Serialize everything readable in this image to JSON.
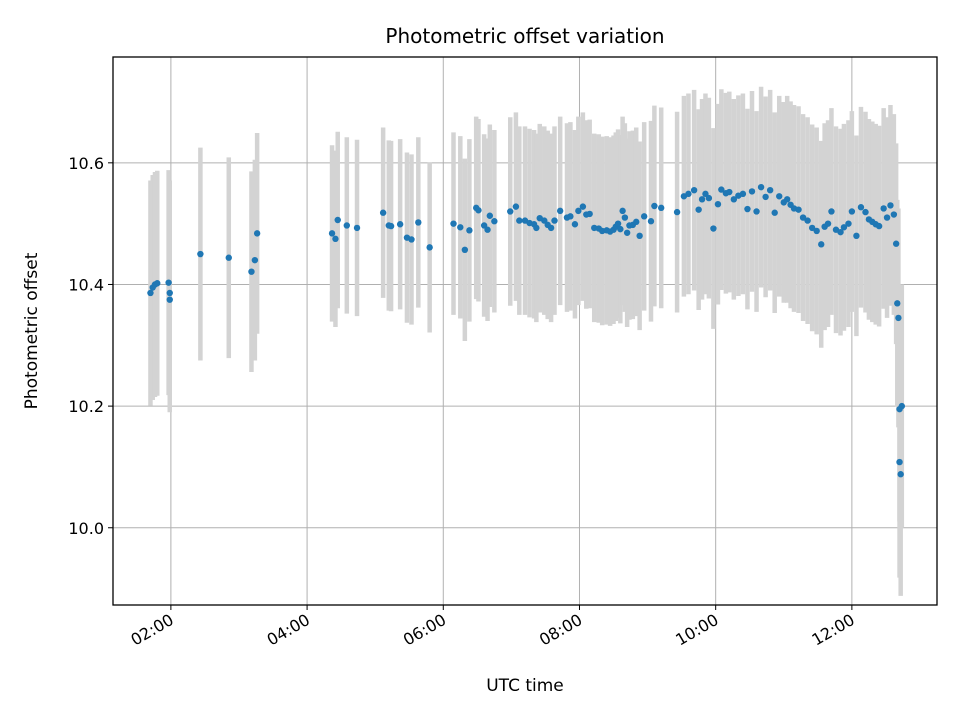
{
  "chart_data": {
    "type": "scatter",
    "title": "Photometric offset variation",
    "xlabel": "UTC time",
    "ylabel": "Photometric offset",
    "x_axis_type": "time",
    "xlim": [
      "01:09",
      "13:15"
    ],
    "ylim": [
      9.873,
      10.774
    ],
    "xticks": [
      "02:00",
      "04:00",
      "06:00",
      "08:00",
      "10:00",
      "12:00"
    ],
    "yticks": [
      "10.0",
      "10.2",
      "10.4",
      "10.6"
    ],
    "grid": true,
    "legend": "none",
    "colors": {
      "points": "#1f77b4",
      "errorbars": "#d3d3d3",
      "grid": "#b0b0b0"
    },
    "series": [
      {
        "x": [
          "01:42",
          "01:44",
          "01:46",
          "01:48",
          "01:58",
          "01:59",
          "01:59",
          "02:26",
          "02:51",
          "03:11",
          "03:14",
          "03:16",
          "04:22",
          "04:25",
          "04:27",
          "04:35",
          "04:44",
          "05:07",
          "05:12",
          "05:14",
          "05:22",
          "05:28",
          "05:32",
          "05:38",
          "05:48",
          "06:09",
          "06:15",
          "06:19",
          "06:23",
          "06:29",
          "06:31",
          "06:36",
          "06:39",
          "06:41",
          "06:45",
          "06:59",
          "07:04",
          "07:07",
          "07:12",
          "07:16",
          "07:20",
          "07:22",
          "07:25",
          "07:29",
          "07:32",
          "07:35",
          "07:38",
          "07:43",
          "07:49",
          "07:52",
          "07:56",
          "07:59",
          "08:03",
          "08:06",
          "08:09",
          "08:13",
          "08:17",
          "08:20",
          "08:24",
          "08:27",
          "08:30",
          "08:32",
          "08:34",
          "08:36",
          "08:38",
          "08:40",
          "08:42",
          "08:44",
          "08:47",
          "08:50",
          "08:53",
          "08:57",
          "09:03",
          "09:06",
          "09:12",
          "09:26",
          "09:32",
          "09:36",
          "09:41",
          "09:45",
          "09:48",
          "09:51",
          "09:54",
          "09:58",
          "10:02",
          "10:05",
          "10:09",
          "10:12",
          "10:16",
          "10:20",
          "10:24",
          "10:28",
          "10:32",
          "10:36",
          "10:40",
          "10:44",
          "10:48",
          "10:52",
          "10:56",
          "11:00",
          "11:03",
          "11:06",
          "11:09",
          "11:13",
          "11:17",
          "11:21",
          "11:25",
          "11:29",
          "11:33",
          "11:36",
          "11:39",
          "11:42",
          "11:46",
          "11:50",
          "11:53",
          "11:57",
          "12:00",
          "12:04",
          "12:08",
          "12:12",
          "12:15",
          "12:18",
          "12:21",
          "12:24",
          "12:28",
          "12:31",
          "12:34",
          "12:37",
          "12:39",
          "12:40",
          "12:41",
          "12:42",
          "12:42",
          "12:43",
          "12:44"
        ],
        "y": [
          10.386,
          10.395,
          10.4,
          10.402,
          10.403,
          10.386,
          10.375,
          10.45,
          10.444,
          10.421,
          10.44,
          10.484,
          10.484,
          10.475,
          10.506,
          10.497,
          10.493,
          10.518,
          10.497,
          10.496,
          10.499,
          10.477,
          10.474,
          10.502,
          10.461,
          10.5,
          10.494,
          10.457,
          10.489,
          10.526,
          10.522,
          10.497,
          10.49,
          10.513,
          10.504,
          10.52,
          10.528,
          10.505,
          10.505,
          10.501,
          10.499,
          10.493,
          10.509,
          10.505,
          10.498,
          10.493,
          10.505,
          10.521,
          10.51,
          10.512,
          10.499,
          10.521,
          10.528,
          10.515,
          10.516,
          10.493,
          10.492,
          10.488,
          10.489,
          10.487,
          10.49,
          10.495,
          10.5,
          10.491,
          10.521,
          10.51,
          10.485,
          10.497,
          10.498,
          10.503,
          10.48,
          10.512,
          10.504,
          10.529,
          10.526,
          10.519,
          10.545,
          10.549,
          10.555,
          10.523,
          10.54,
          10.549,
          10.542,
          10.492,
          10.532,
          10.556,
          10.55,
          10.552,
          10.54,
          10.546,
          10.549,
          10.524,
          10.553,
          10.52,
          10.56,
          10.544,
          10.555,
          10.518,
          10.545,
          10.535,
          10.54,
          10.531,
          10.525,
          10.523,
          10.51,
          10.505,
          10.493,
          10.488,
          10.466,
          10.495,
          10.5,
          10.52,
          10.49,
          10.486,
          10.494,
          10.5,
          10.52,
          10.48,
          10.527,
          10.519,
          10.507,
          10.503,
          10.499,
          10.496,
          10.525,
          10.51,
          10.53,
          10.515,
          10.467,
          10.369,
          10.345,
          10.195,
          10.108,
          10.088,
          10.2
        ],
        "yerr": [
          0.185,
          0.185,
          0.185,
          0.185,
          0.185,
          0.185,
          0.185,
          0.175,
          0.165,
          0.165,
          0.165,
          0.165,
          0.145,
          0.145,
          0.145,
          0.145,
          0.145,
          0.14,
          0.14,
          0.14,
          0.14,
          0.14,
          0.14,
          0.14,
          0.14,
          0.15,
          0.15,
          0.15,
          0.15,
          0.15,
          0.15,
          0.15,
          0.15,
          0.15,
          0.15,
          0.155,
          0.155,
          0.155,
          0.155,
          0.155,
          0.155,
          0.155,
          0.155,
          0.155,
          0.155,
          0.155,
          0.155,
          0.155,
          0.155,
          0.155,
          0.155,
          0.155,
          0.155,
          0.155,
          0.155,
          0.155,
          0.155,
          0.155,
          0.155,
          0.155,
          0.155,
          0.155,
          0.155,
          0.155,
          0.155,
          0.155,
          0.155,
          0.155,
          0.155,
          0.155,
          0.155,
          0.155,
          0.165,
          0.165,
          0.165,
          0.165,
          0.165,
          0.165,
          0.165,
          0.165,
          0.165,
          0.165,
          0.165,
          0.165,
          0.165,
          0.165,
          0.165,
          0.165,
          0.165,
          0.165,
          0.165,
          0.165,
          0.165,
          0.165,
          0.165,
          0.165,
          0.165,
          0.165,
          0.165,
          0.165,
          0.17,
          0.17,
          0.17,
          0.17,
          0.17,
          0.17,
          0.17,
          0.17,
          0.17,
          0.17,
          0.17,
          0.17,
          0.17,
          0.17,
          0.17,
          0.17,
          0.165,
          0.165,
          0.165,
          0.165,
          0.165,
          0.165,
          0.165,
          0.165,
          0.165,
          0.165,
          0.165,
          0.165,
          0.165,
          0.17,
          0.18,
          0.185,
          0.19,
          0.2,
          0.2
        ]
      }
    ]
  }
}
